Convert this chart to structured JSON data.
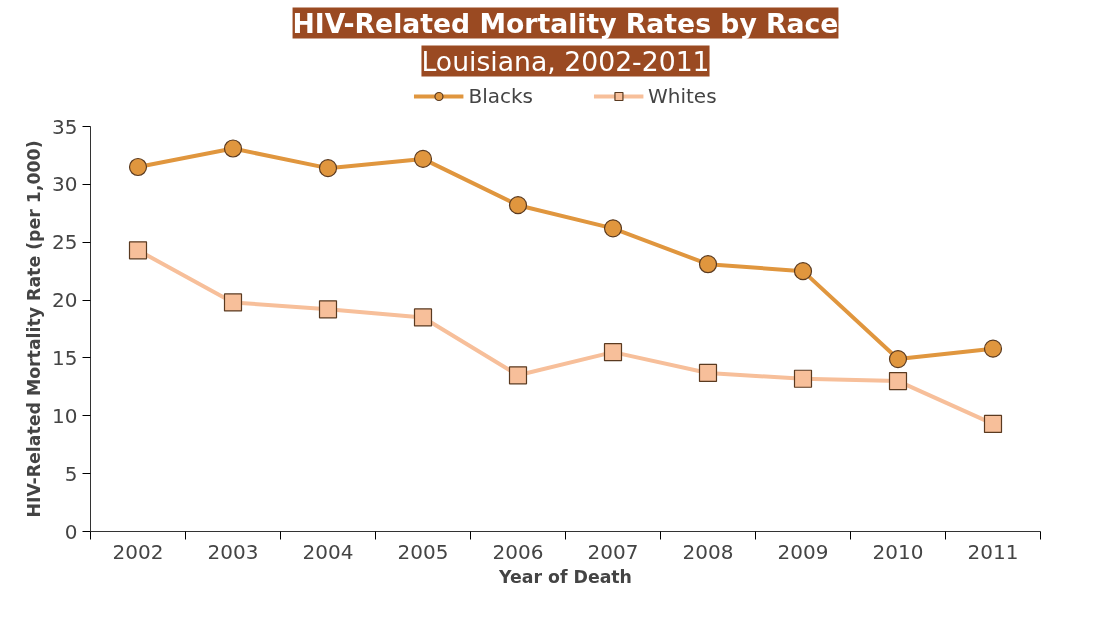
{
  "chart_data": {
    "type": "line",
    "title": "HIV-Related Mortality Rates by Race",
    "subtitle": "Louisiana, 2002-2011",
    "xlabel": "Year of Death",
    "ylabel": "HIV-Related Mortality Rate (per 1,000)",
    "categories": [
      "2002",
      "2003",
      "2004",
      "2005",
      "2006",
      "2007",
      "2008",
      "2009",
      "2010",
      "2011"
    ],
    "series": [
      {
        "name": "Blacks",
        "color": "#e0963e",
        "marker": "circle",
        "values": [
          31.5,
          33.1,
          31.4,
          32.2,
          28.2,
          26.2,
          23.1,
          22.5,
          14.9,
          15.8
        ]
      },
      {
        "name": "Whites",
        "color": "#f7bf9a",
        "marker": "square",
        "values": [
          24.3,
          19.8,
          19.2,
          18.5,
          13.5,
          15.5,
          13.7,
          13.2,
          13.0,
          9.3
        ]
      }
    ],
    "ylim": [
      0,
      35
    ],
    "yticks": [
      0,
      5,
      10,
      15,
      20,
      25,
      30,
      35
    ],
    "grid": false,
    "legend": "top",
    "line_style": "solid"
  }
}
